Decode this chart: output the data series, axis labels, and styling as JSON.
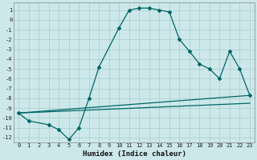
{
  "title": "",
  "xlabel": "Humidex (Indice chaleur)",
  "bg_color": "#cce8ea",
  "grid_color": "#aacccc",
  "line_color": "#006666",
  "xlim": [
    -0.5,
    23.5
  ],
  "ylim": [
    -12.5,
    1.8
  ],
  "xticks": [
    0,
    1,
    2,
    3,
    4,
    5,
    6,
    7,
    8,
    9,
    10,
    11,
    12,
    13,
    14,
    15,
    16,
    17,
    18,
    19,
    20,
    21,
    22,
    23
  ],
  "yticks": [
    1,
    0,
    -1,
    -2,
    -3,
    -4,
    -5,
    -6,
    -7,
    -8,
    -9,
    -10,
    -11,
    -12
  ],
  "line1_x": [
    0,
    1,
    3,
    4,
    5,
    6,
    7,
    8,
    10,
    11,
    12,
    13,
    14,
    15,
    16,
    17,
    18,
    19,
    20,
    21,
    22,
    23
  ],
  "line1_y": [
    -9.5,
    -10.3,
    -10.7,
    -11.2,
    -12.2,
    -11.0,
    -8.0,
    -4.8,
    -0.8,
    1.0,
    1.2,
    1.2,
    1.0,
    0.8,
    -2.0,
    -3.2,
    -4.5,
    -5.0,
    -6.0,
    -3.2,
    -5.0,
    -7.7
  ],
  "line2_x": [
    0,
    23
  ],
  "line2_y": [
    -9.5,
    -7.7
  ],
  "line3_x": [
    0,
    23
  ],
  "line3_y": [
    -9.5,
    -8.5
  ],
  "marker_style": "D",
  "marker_size": 2.0,
  "line_width": 0.9,
  "tick_fontsize": 5.0,
  "label_fontsize": 6.5,
  "label_fontweight": "bold"
}
